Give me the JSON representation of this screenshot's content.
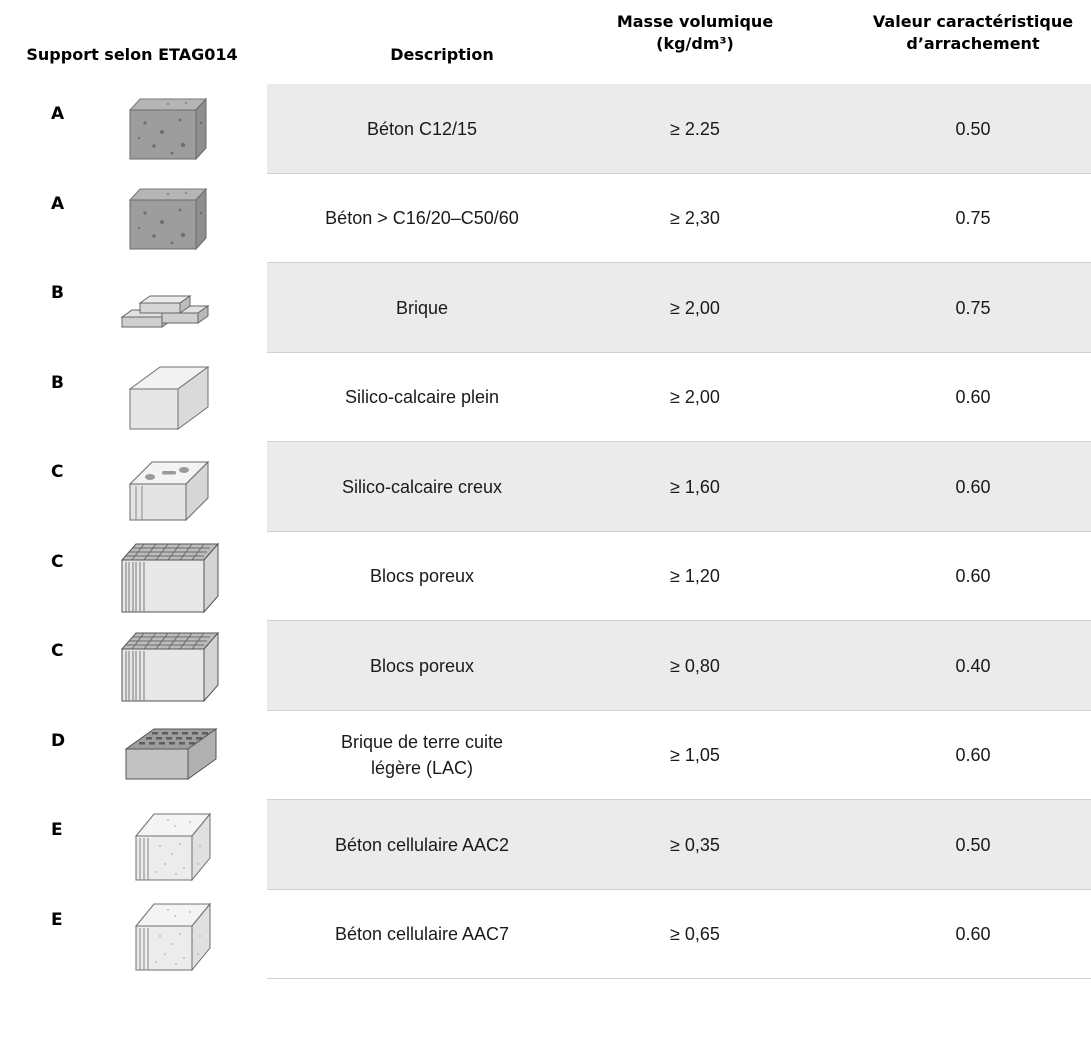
{
  "header": {
    "support": "Support selon ETAG014",
    "description": "Description",
    "masse_line1": "Masse volumique",
    "masse_line2": "(kg/dm³)",
    "valeur_line1": "Valeur caractéristique",
    "valeur_line2": "d’arrachement"
  },
  "rows": [
    {
      "letter": "A",
      "icon": "concrete-block-icon",
      "description": "Béton C12/15",
      "masse": "≥ 2.25",
      "valeur": "0.50"
    },
    {
      "letter": "A",
      "icon": "concrete-block-icon",
      "description": "Béton > C16/20–C50/60",
      "masse": "≥ 2,30",
      "valeur": "0.75"
    },
    {
      "letter": "B",
      "icon": "brick-stack-icon",
      "description": "Brique",
      "masse": "≥ 2,00",
      "valeur": "0.75"
    },
    {
      "letter": "B",
      "icon": "solid-calcium-silicate-block-icon",
      "description": "Silico-calcaire plein",
      "masse": "≥ 2,00",
      "valeur": "0.60"
    },
    {
      "letter": "C",
      "icon": "hollow-calcium-silicate-block-icon",
      "description": "Silico-calcaire creux",
      "masse": "≥ 1,60",
      "valeur": "0.60"
    },
    {
      "letter": "C",
      "icon": "porous-block-icon",
      "description": "Blocs poreux",
      "masse": "≥ 1,20",
      "valeur": "0.60"
    },
    {
      "letter": "C",
      "icon": "porous-block-icon",
      "description": "Blocs poreux",
      "masse": "≥ 0,80",
      "valeur": "0.40"
    },
    {
      "letter": "D",
      "icon": "perforated-clay-brick-icon",
      "description": "Brique de terre cuite\nlégère (LAC)",
      "masse": "≥ 1,05",
      "valeur": "0.60"
    },
    {
      "letter": "E",
      "icon": "aerated-concrete-block-icon",
      "description": "Béton cellulaire AAC2",
      "masse": "≥ 0,35",
      "valeur": "0.50"
    },
    {
      "letter": "E",
      "icon": "aerated-concrete-block-icon",
      "description": "Béton cellulaire AAC7",
      "masse": "≥ 0,65",
      "valeur": "0.60"
    }
  ]
}
